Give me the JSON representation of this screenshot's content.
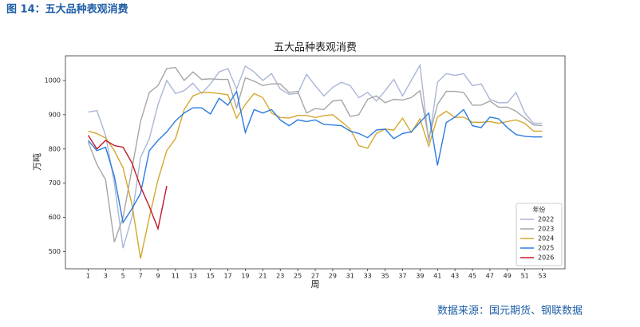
{
  "figure_title": "图 14：五大品种表观消费",
  "source": "数据来源：国元期货、钢联数据",
  "chart_data": {
    "type": "line",
    "title": "五大品种表观消费",
    "x_label": "周",
    "y_label": "万吨",
    "legend_title": "年份",
    "legend": "lower right",
    "grid": false,
    "xlim": [
      -1.6,
      55.6
    ],
    "ylim": [
      450,
      1072
    ],
    "xticks": [
      1,
      3,
      5,
      7,
      9,
      11,
      13,
      15,
      17,
      19,
      21,
      23,
      25,
      27,
      29,
      31,
      33,
      35,
      37,
      39,
      41,
      43,
      45,
      47,
      49,
      51,
      53
    ],
    "yticks": [
      500,
      600,
      700,
      800,
      900,
      1000
    ],
    "x": [
      1,
      2,
      3,
      4,
      5,
      6,
      7,
      8,
      9,
      10,
      11,
      12,
      13,
      14,
      15,
      16,
      17,
      18,
      19,
      20,
      21,
      22,
      23,
      24,
      25,
      26,
      27,
      28,
      29,
      30,
      31,
      32,
      33,
      34,
      35,
      36,
      37,
      38,
      39,
      40,
      41,
      42,
      43,
      44,
      45,
      46,
      47,
      48,
      49,
      50,
      51,
      52,
      53
    ],
    "series": [
      {
        "name": "2022",
        "color": "#a9b6d6",
        "values": [
          908,
          912,
          840,
          700,
          510,
          600,
          775,
          830,
          930,
          1000,
          962,
          970,
          992,
          962,
          990,
          1025,
          1035,
          975,
          1042,
          1025,
          1000,
          1020,
          975,
          960,
          962,
          1018,
          985,
          955,
          980,
          995,
          985,
          950,
          965,
          940,
          970,
          1003,
          955,
          1000,
          1045,
          820,
          995,
          1020,
          1015,
          1020,
          985,
          990,
          945,
          935,
          935,
          965,
          905,
          875,
          875
        ]
      },
      {
        "name": "2023",
        "color": "#a6a6a6",
        "values": [
          820,
          755,
          710,
          528,
          600,
          740,
          880,
          965,
          985,
          1035,
          1038,
          1000,
          1025,
          1003,
          1005,
          1003,
          1003,
          920,
          1008,
          998,
          985,
          990,
          990,
          965,
          968,
          905,
          918,
          915,
          940,
          943,
          895,
          900,
          945,
          955,
          935,
          945,
          943,
          950,
          970,
          830,
          930,
          968,
          968,
          965,
          928,
          928,
          940,
          922,
          922,
          910,
          890,
          870,
          868
        ]
      },
      {
        "name": "2024",
        "color": "#d4a72c",
        "values": [
          852,
          845,
          832,
          795,
          745,
          640,
          480,
          600,
          710,
          795,
          830,
          915,
          955,
          965,
          965,
          962,
          958,
          890,
          930,
          962,
          950,
          905,
          892,
          890,
          898,
          898,
          892,
          897,
          900,
          880,
          858,
          810,
          802,
          845,
          858,
          855,
          890,
          848,
          888,
          808,
          893,
          910,
          892,
          893,
          878,
          878,
          880,
          875,
          880,
          885,
          875,
          852,
          852
        ]
      },
      {
        "name": "2025",
        "color": "#2b7de0",
        "values": [
          825,
          795,
          805,
          720,
          585,
          625,
          670,
          795,
          825,
          850,
          882,
          905,
          920,
          920,
          902,
          948,
          928,
          968,
          848,
          915,
          905,
          915,
          885,
          868,
          885,
          880,
          885,
          872,
          870,
          868,
          852,
          845,
          833,
          855,
          858,
          830,
          845,
          850,
          878,
          905,
          752,
          877,
          893,
          915,
          868,
          862,
          893,
          888,
          862,
          842,
          837,
          835,
          835
        ]
      },
      {
        "name": "2026",
        "color": "#c0182a",
        "values": [
          840,
          800,
          825,
          810,
          805,
          760,
          690,
          632,
          567,
          692,
          null,
          null,
          null,
          null,
          null,
          null,
          null,
          null,
          null,
          null,
          null,
          null,
          null,
          null,
          null,
          null,
          null,
          null,
          null,
          null,
          null,
          null,
          null,
          null,
          null,
          null,
          null,
          null,
          null,
          null,
          null,
          null,
          null,
          null,
          null,
          null,
          null,
          null,
          null,
          null,
          null,
          null,
          null
        ]
      }
    ]
  }
}
